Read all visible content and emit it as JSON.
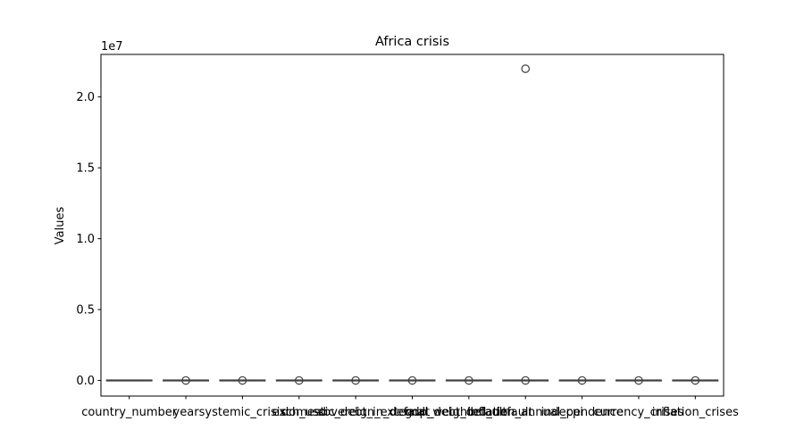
{
  "chart_data": {
    "type": "box",
    "title": "Africa crisis",
    "xlabel": "",
    "ylabel": "Values",
    "y_offset_label": "1e7",
    "y_scale": 10000000,
    "ylim": [
      -0.11,
      2.3
    ],
    "y_ticks": [
      0.0,
      0.5,
      1.0,
      1.5,
      2.0
    ],
    "y_tick_labels": [
      "0.0",
      "0.5",
      "1.0",
      "1.5",
      "2.0"
    ],
    "grid": false,
    "legend": "none",
    "box_edge_color": "#3f3f3f",
    "categories": [
      "country_number",
      "year",
      "systemic_crisis",
      "exch_usd",
      "domestic_debt_in_default",
      "sovereign_external_debt_default",
      "gdp_weighted_default",
      "inflation_annual_cpi",
      "independence",
      "currency_crises",
      "inflation_crises"
    ],
    "boxes": [
      {
        "q1": 0,
        "median": 0,
        "q3": 0,
        "whisker_low": 0,
        "whisker_high": 0,
        "fliers": []
      },
      {
        "q1": 0,
        "median": 0,
        "q3": 0,
        "whisker_low": 0,
        "whisker_high": 0,
        "fliers": [
          0
        ]
      },
      {
        "q1": 0,
        "median": 0,
        "q3": 0,
        "whisker_low": 0,
        "whisker_high": 0,
        "fliers": [
          0
        ]
      },
      {
        "q1": 0,
        "median": 0,
        "q3": 0,
        "whisker_low": 0,
        "whisker_high": 0,
        "fliers": [
          0
        ]
      },
      {
        "q1": 0,
        "median": 0,
        "q3": 0,
        "whisker_low": 0,
        "whisker_high": 0,
        "fliers": [
          0
        ]
      },
      {
        "q1": 0,
        "median": 0,
        "q3": 0,
        "whisker_low": 0,
        "whisker_high": 0,
        "fliers": [
          0
        ]
      },
      {
        "q1": 0,
        "median": 0,
        "q3": 0,
        "whisker_low": 0,
        "whisker_high": 0,
        "fliers": [
          0
        ]
      },
      {
        "q1": 0,
        "median": 0,
        "q3": 0,
        "whisker_low": 0,
        "whisker_high": 0,
        "fliers": [
          0,
          21989695
        ]
      },
      {
        "q1": 0,
        "median": 0,
        "q3": 0,
        "whisker_low": 0,
        "whisker_high": 0,
        "fliers": [
          0
        ]
      },
      {
        "q1": 0,
        "median": 0,
        "q3": 0,
        "whisker_low": 0,
        "whisker_high": 0,
        "fliers": [
          0
        ]
      },
      {
        "q1": 0,
        "median": 0,
        "q3": 0,
        "whisker_low": 0,
        "whisker_high": 0,
        "fliers": [
          0
        ]
      }
    ]
  }
}
